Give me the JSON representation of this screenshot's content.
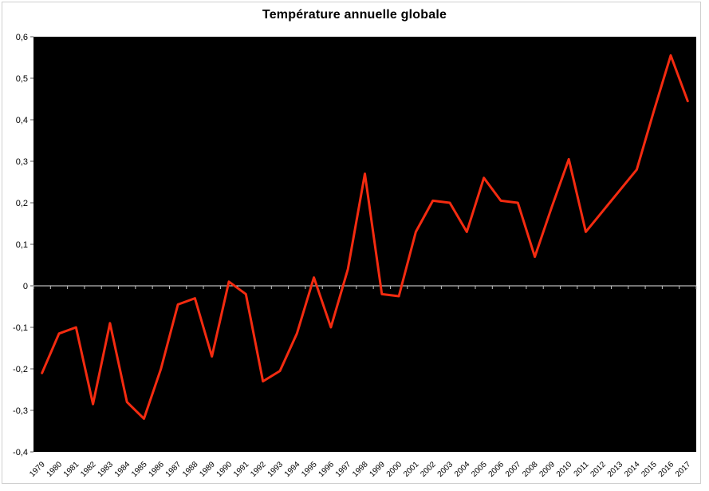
{
  "chart": {
    "title": "Température annuelle globale"
  },
  "chart_data": {
    "type": "line",
    "title": "Température annuelle globale",
    "xlabel": "",
    "ylabel": "",
    "x": [
      1979,
      1980,
      1981,
      1982,
      1983,
      1984,
      1985,
      1986,
      1987,
      1988,
      1989,
      1990,
      1991,
      1992,
      1993,
      1994,
      1995,
      1996,
      1997,
      1998,
      1999,
      2000,
      2001,
      2002,
      2003,
      2004,
      2005,
      2006,
      2007,
      2008,
      2009,
      2010,
      2011,
      2012,
      2013,
      2014,
      2015,
      2016,
      2017
    ],
    "series": [
      {
        "name": "Température annuelle globale",
        "values": [
          -0.21,
          -0.115,
          -0.1,
          -0.285,
          -0.09,
          -0.28,
          -0.32,
          -0.2,
          -0.045,
          -0.03,
          -0.17,
          0.01,
          -0.02,
          -0.23,
          -0.205,
          -0.115,
          0.02,
          -0.1,
          0.04,
          0.27,
          -0.02,
          -0.025,
          0.13,
          0.205,
          0.2,
          0.13,
          0.26,
          0.205,
          0.2,
          0.07,
          0.19,
          0.305,
          0.13,
          0.18,
          0.23,
          0.28,
          0.42,
          0.555,
          0.445
        ]
      }
    ],
    "ylim": [
      -0.4,
      0.6
    ],
    "y_tick_values": [
      0.6,
      0.5,
      0.4,
      0.3,
      0.2,
      0.1,
      0,
      -0.1,
      -0.2,
      -0.3,
      -0.4
    ],
    "y_tick_labels": [
      "0,6",
      "0,5",
      "0,4",
      "0,3",
      "0,2",
      "0,1",
      "0",
      "-0,1",
      "-0,2",
      "-0,3",
      "-0,4"
    ],
    "x_tick_labels": [
      "1979",
      "1980",
      "1981",
      "1982",
      "1983",
      "1984",
      "1985",
      "1986",
      "1987",
      "1988",
      "1989",
      "1990",
      "1991",
      "1992",
      "1993",
      "1994",
      "1995",
      "1996",
      "1997",
      "1998",
      "1999",
      "2000",
      "2001",
      "2002",
      "2003",
      "2004",
      "2005",
      "2006",
      "2007",
      "2008",
      "2009",
      "2010",
      "2011",
      "2012",
      "2013",
      "2014",
      "2015",
      "2016",
      "2017"
    ],
    "grid": "none",
    "legend": "none",
    "colors": {
      "line": "#f42b10",
      "plot_background": "#000000",
      "zero_axis": "#e6e6e6",
      "category_ticks": "#bfbfbf",
      "y_ticks": "#595959",
      "text": "#000000"
    }
  }
}
